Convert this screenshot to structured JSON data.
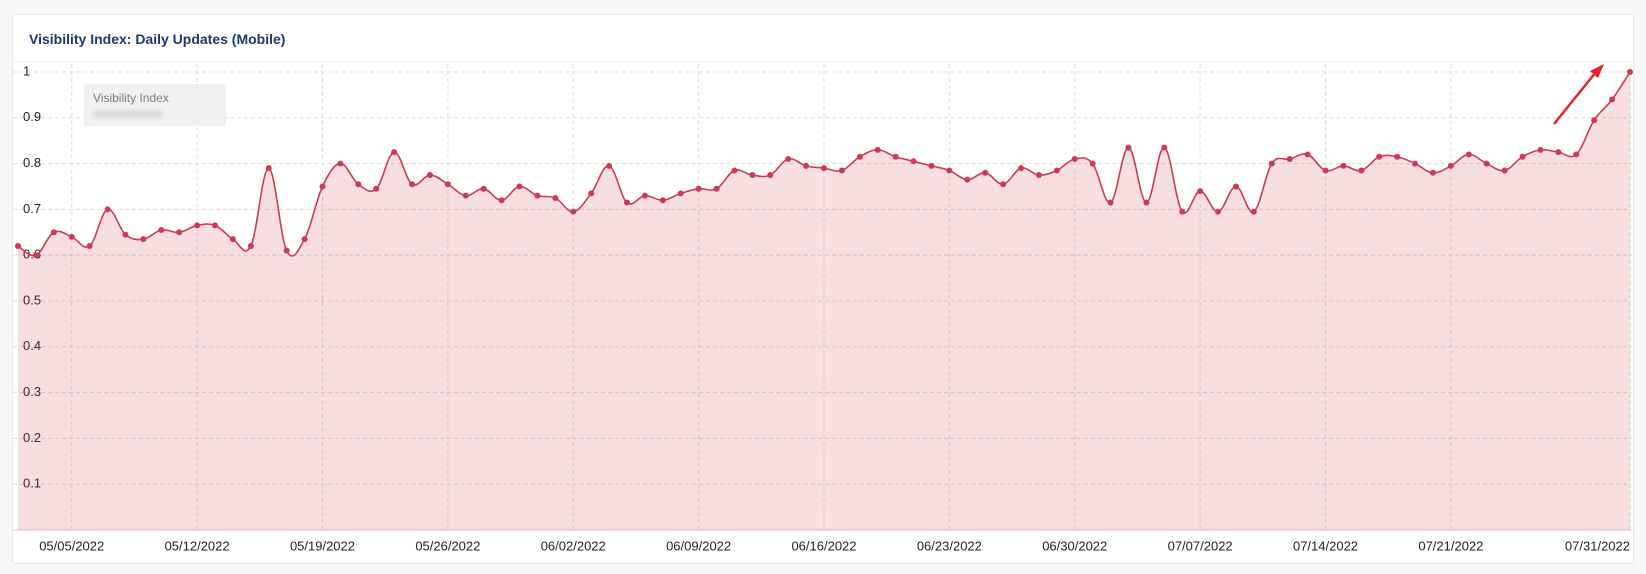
{
  "chart_data": {
    "type": "area",
    "title": "Visibility Index: Daily Updates (Mobile)",
    "categories": [
      null,
      null,
      null,
      "05/05/2022",
      null,
      null,
      null,
      null,
      null,
      null,
      "05/12/2022",
      null,
      null,
      null,
      null,
      null,
      null,
      "05/19/2022",
      null,
      null,
      null,
      null,
      null,
      null,
      "05/26/2022",
      null,
      null,
      null,
      null,
      null,
      null,
      "06/02/2022",
      null,
      null,
      null,
      null,
      null,
      null,
      "06/09/2022",
      null,
      null,
      null,
      null,
      null,
      null,
      "06/16/2022",
      null,
      null,
      null,
      null,
      null,
      null,
      "06/23/2022",
      null,
      null,
      null,
      null,
      null,
      null,
      "06/30/2022",
      null,
      null,
      null,
      null,
      null,
      null,
      "07/07/2022",
      null,
      null,
      null,
      null,
      null,
      null,
      "07/14/2022",
      null,
      null,
      null,
      null,
      null,
      null,
      "07/21/2022",
      null,
      null,
      null,
      null,
      null,
      null,
      null,
      null,
      null,
      "07/31/2022"
    ],
    "series": [
      {
        "name": "Visibility Index",
        "color": "#cc3a55",
        "values": [
          0.62,
          0.6,
          0.65,
          0.64,
          0.62,
          0.7,
          0.645,
          0.635,
          0.655,
          0.65,
          0.665,
          0.665,
          0.635,
          0.62,
          0.79,
          0.61,
          0.635,
          0.75,
          0.8,
          0.755,
          0.745,
          0.825,
          0.755,
          0.775,
          0.755,
          0.73,
          0.745,
          0.72,
          0.75,
          0.73,
          0.725,
          0.695,
          0.735,
          0.795,
          0.715,
          0.73,
          0.72,
          0.735,
          0.745,
          0.745,
          0.785,
          0.775,
          0.775,
          0.81,
          0.795,
          0.79,
          0.785,
          0.815,
          0.83,
          0.815,
          0.805,
          0.795,
          0.785,
          0.765,
          0.78,
          0.755,
          0.79,
          0.775,
          0.785,
          0.81,
          0.8,
          0.715,
          0.835,
          0.715,
          0.835,
          0.695,
          0.74,
          0.695,
          0.75,
          0.695,
          0.8,
          0.81,
          0.82,
          0.785,
          0.795,
          0.785,
          0.815,
          0.815,
          0.8,
          0.78,
          0.795,
          0.82,
          0.8,
          0.785,
          0.815,
          0.83,
          0.825,
          0.82,
          0.895,
          0.94,
          1.0
        ]
      }
    ],
    "ylim": [
      0,
      1
    ],
    "yticks": [
      0.1,
      0.2,
      0.3,
      0.4,
      0.5,
      0.6,
      0.7,
      0.8,
      0.9,
      1
    ],
    "grid": true
  }
}
